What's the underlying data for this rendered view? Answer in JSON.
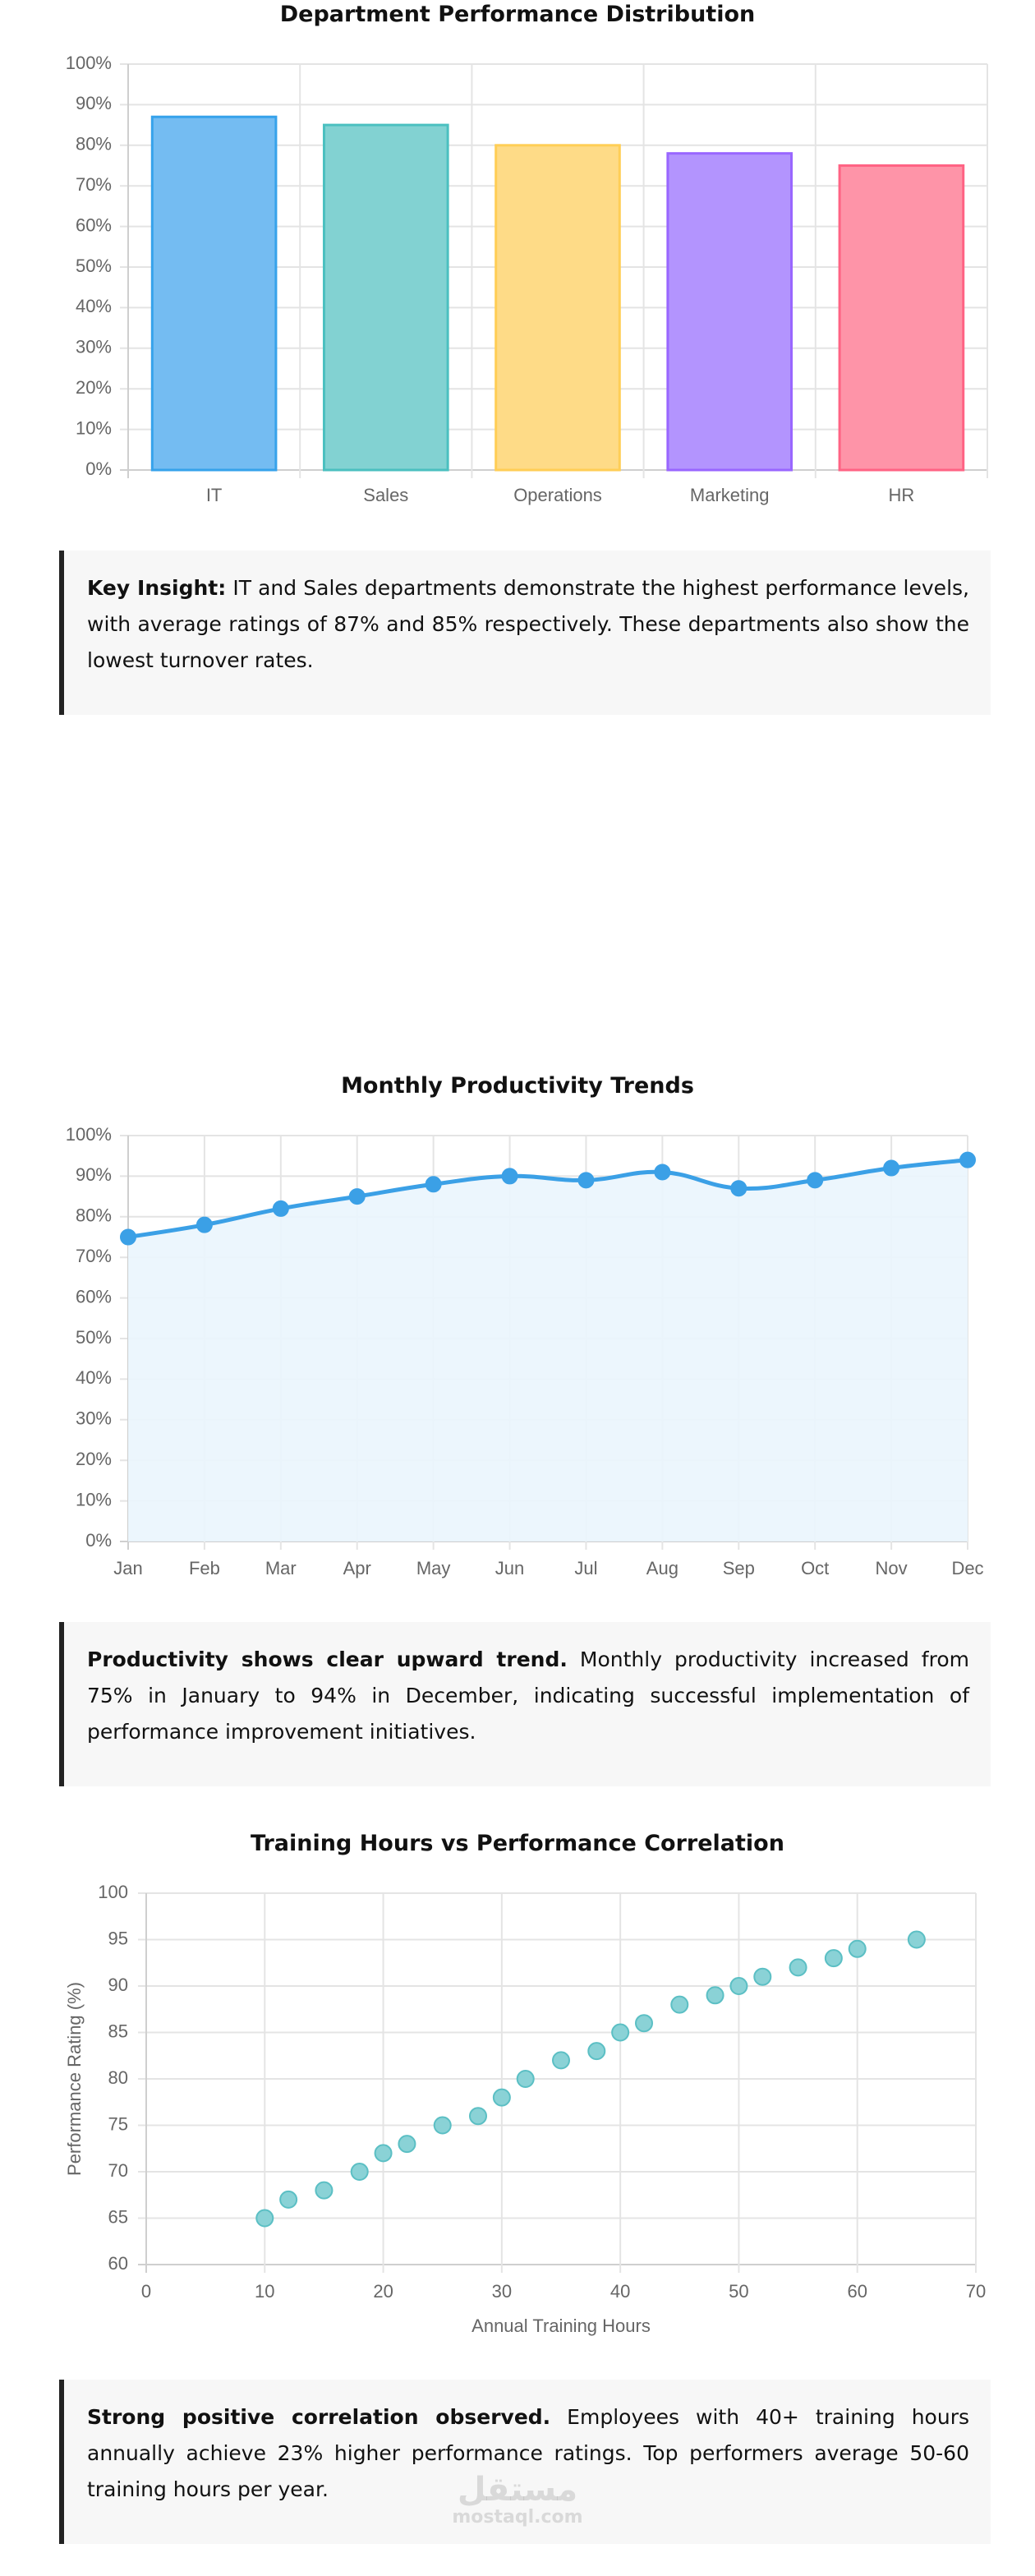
{
  "charts": {
    "dept": {
      "title": "Department Performance Distribution",
      "insight_bold": "Key Insight:",
      "insight_text": " IT and Sales departments demonstrate the highest performance levels, with average ratings of 87% and 85% respectively. These departments also show the lowest turnover rates."
    },
    "monthly": {
      "title": "Monthly Productivity Trends",
      "insight_bold": "Productivity shows clear upward trend.",
      "insight_text": " Monthly productivity increased from 75% in January to 94% in December, indicating successful implementation of performance improvement initiatives."
    },
    "training": {
      "title": "Training Hours vs Performance Correlation",
      "insight_bold": "Strong positive correlation observed.",
      "insight_text": " Employees with 40+ training hours annually achieve 23% higher performance ratings. Top performers average 50-60 training hours per year."
    }
  },
  "watermark": {
    "arabic": "مستقل",
    "latin": "mostaql.com"
  },
  "chart_data": [
    {
      "type": "bar",
      "title": "Department Performance Distribution",
      "categories": [
        "IT",
        "Sales",
        "Operations",
        "Marketing",
        "HR"
      ],
      "values": [
        87,
        85,
        80,
        78,
        75
      ],
      "ylim": [
        0,
        100
      ],
      "ytick_step": 10,
      "ytick_suffix": "%",
      "xlabel": "",
      "ylabel": "",
      "grid": true,
      "colors": {
        "fill": [
          "#74bcf2",
          "#82d2d2",
          "#fedb87",
          "#b394fe",
          "#fe94a8"
        ],
        "border": [
          "#36a2eb",
          "#4bc0c0",
          "#ffce56",
          "#9966ff",
          "#ff6384"
        ]
      }
    },
    {
      "type": "area",
      "title": "Monthly Productivity Trends",
      "categories": [
        "Jan",
        "Feb",
        "Mar",
        "Apr",
        "May",
        "Jun",
        "Jul",
        "Aug",
        "Sep",
        "Oct",
        "Nov",
        "Dec"
      ],
      "values": [
        75,
        78,
        82,
        85,
        88,
        90,
        89,
        91,
        87,
        89,
        92,
        94
      ],
      "ylim": [
        0,
        100
      ],
      "ytick_step": 10,
      "ytick_suffix": "%",
      "xlabel": "",
      "ylabel": "",
      "grid": true,
      "colors": {
        "line": "#3ba0e6",
        "fill": "#eaf5fd"
      }
    },
    {
      "type": "scatter",
      "title": "Training Hours vs Performance Correlation",
      "points": [
        [
          10,
          65
        ],
        [
          12,
          67
        ],
        [
          15,
          68
        ],
        [
          18,
          70
        ],
        [
          20,
          72
        ],
        [
          22,
          73
        ],
        [
          25,
          75
        ],
        [
          28,
          76
        ],
        [
          30,
          78
        ],
        [
          32,
          80
        ],
        [
          35,
          82
        ],
        [
          38,
          83
        ],
        [
          40,
          85
        ],
        [
          42,
          86
        ],
        [
          45,
          88
        ],
        [
          48,
          89
        ],
        [
          50,
          90
        ],
        [
          52,
          91
        ],
        [
          55,
          92
        ],
        [
          58,
          93
        ],
        [
          60,
          94
        ],
        [
          65,
          95
        ]
      ],
      "xlim": [
        0,
        70
      ],
      "ylim": [
        60,
        100
      ],
      "xtick_step": 10,
      "ytick_step": 5,
      "xlabel": "Annual Training Hours",
      "ylabel": "Performance Rating (%)",
      "grid": true,
      "colors": {
        "fill": "#8ad2d6",
        "border": "#5bbfc4"
      }
    }
  ]
}
